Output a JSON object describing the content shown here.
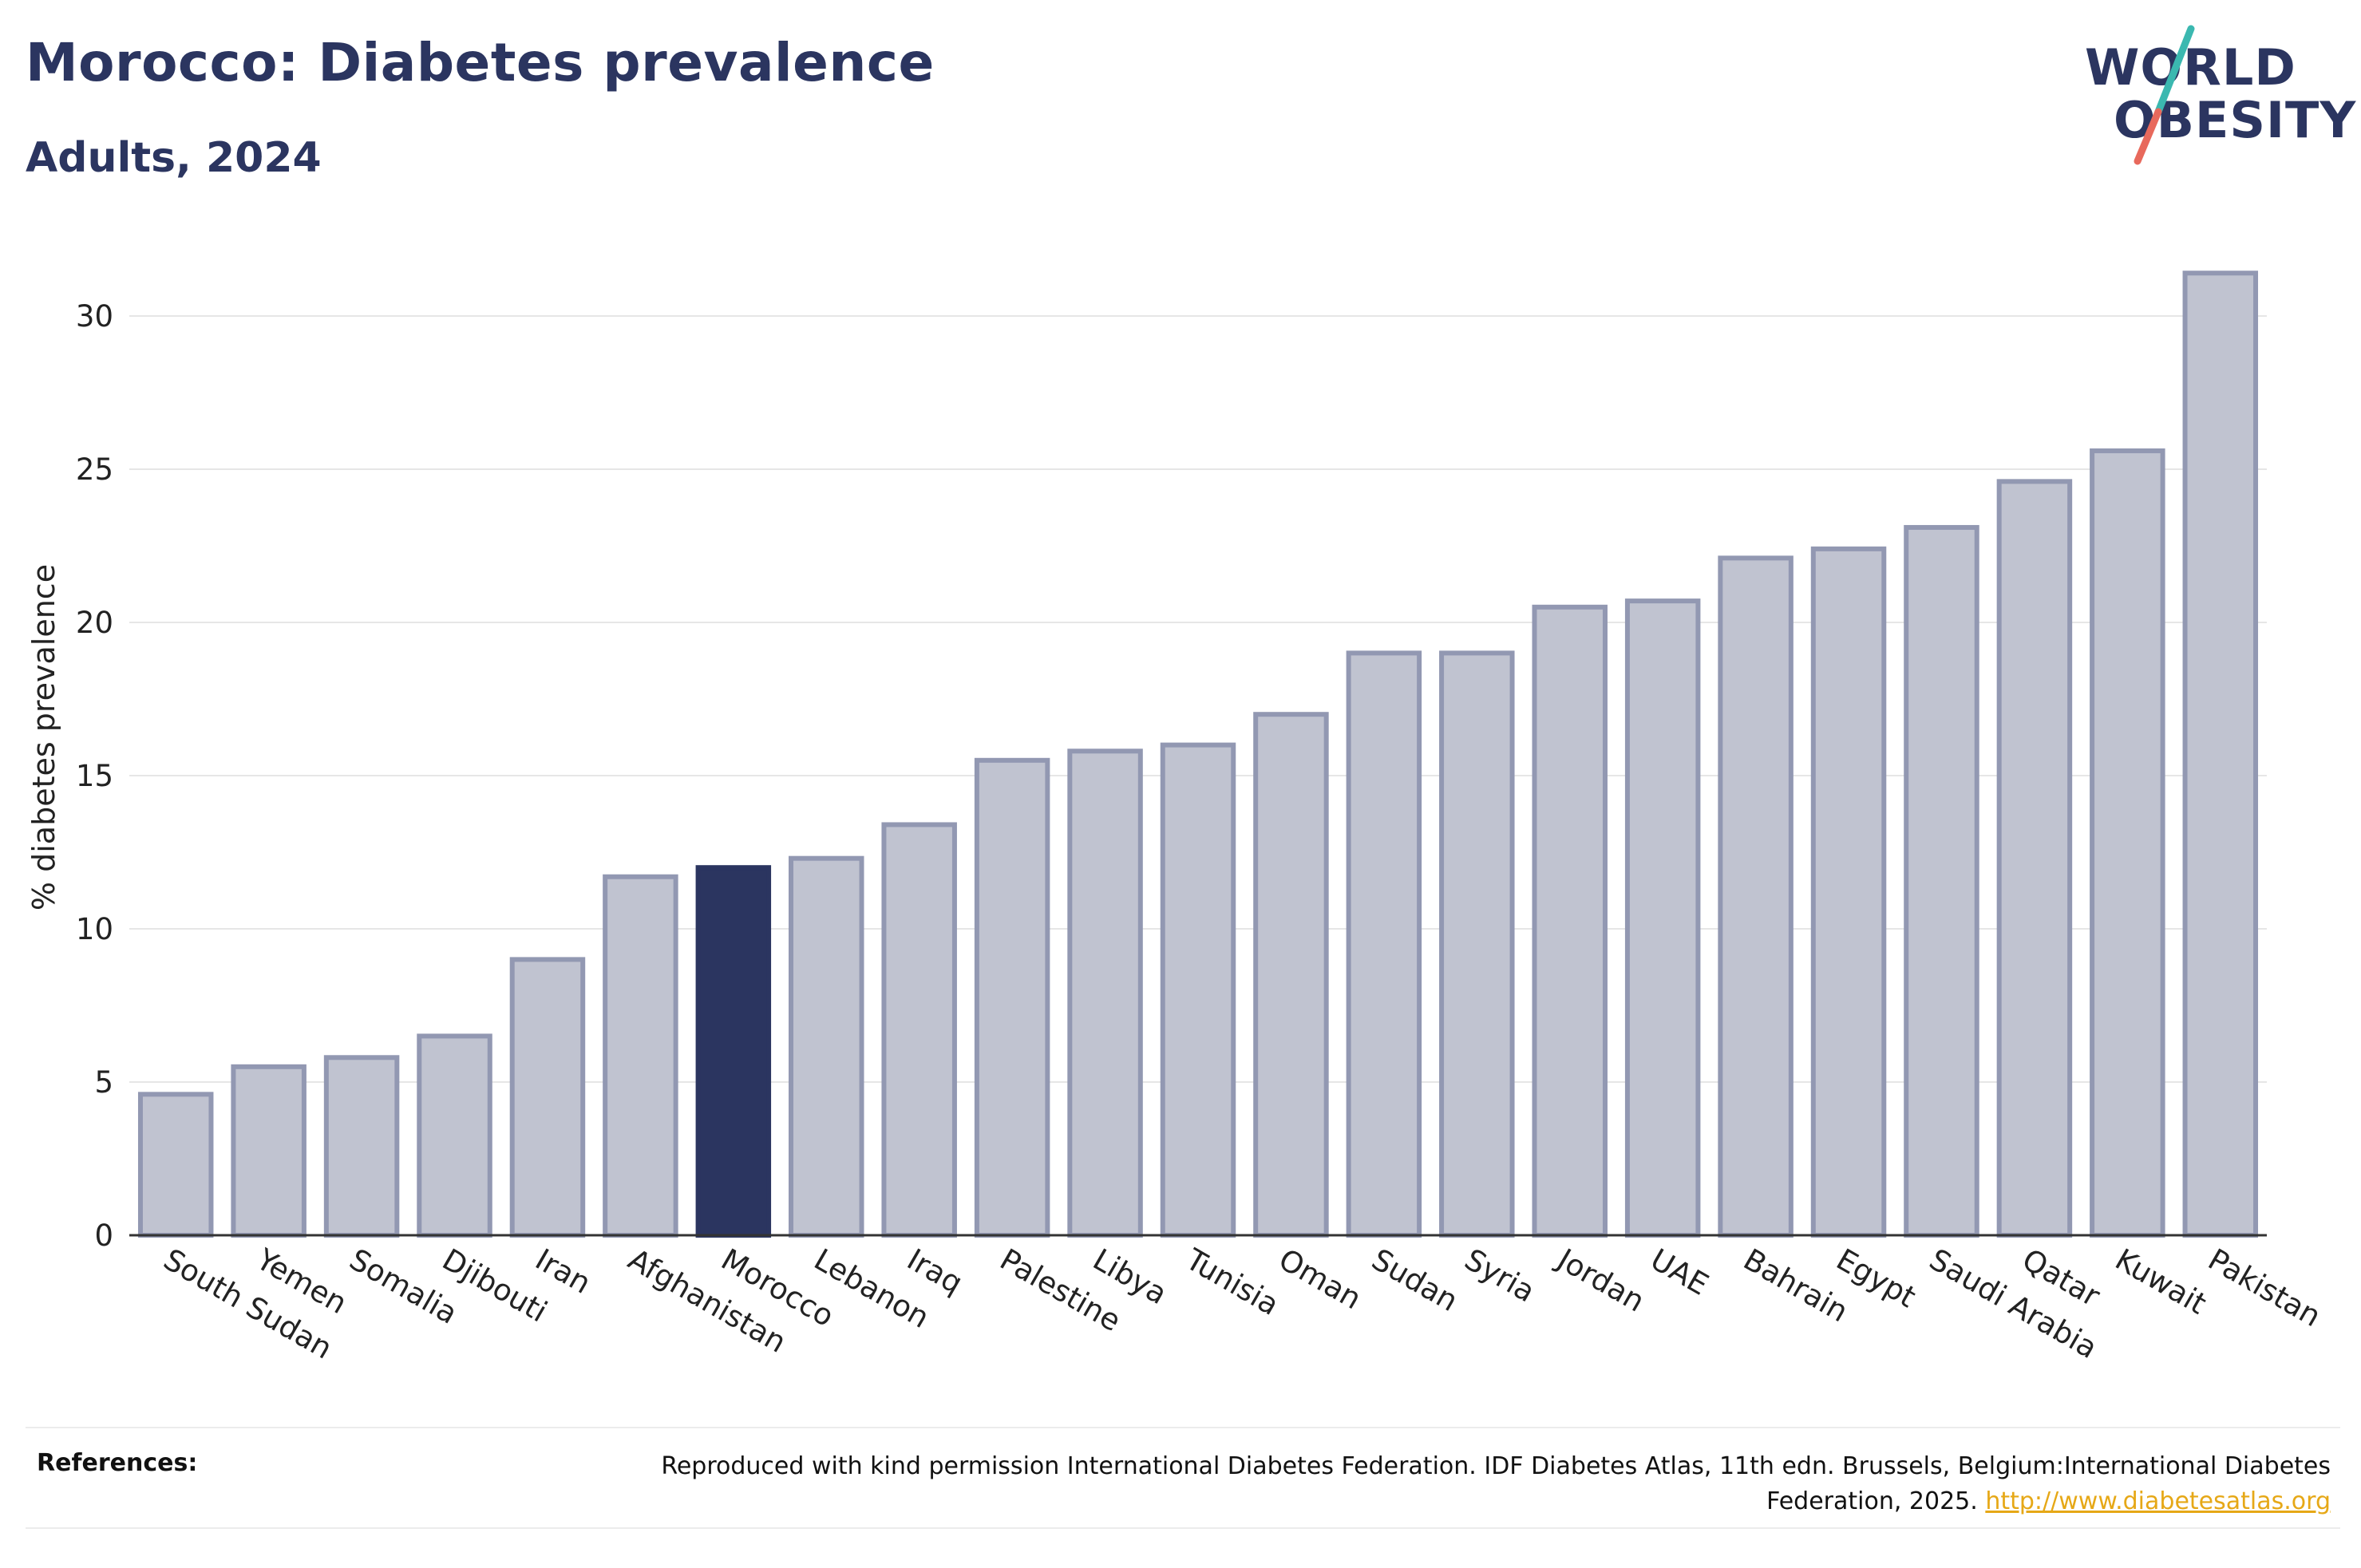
{
  "header": {
    "title": "Morocco: Diabetes prevalence",
    "subtitle": "Adults, 2024"
  },
  "logo": {
    "line1": "WORLD",
    "line2": "OBESITY",
    "slash_colors": [
      "#3bb8b0",
      "#e8695c"
    ]
  },
  "chart_data": {
    "type": "bar",
    "ylabel": "% diabetes prevalence",
    "xlabel": "",
    "ylim": [
      0,
      32.5
    ],
    "yticks": [
      0,
      5,
      10,
      15,
      20,
      25,
      30
    ],
    "grid": true,
    "highlight": "Morocco",
    "colors": {
      "bar": "#c0c3d0",
      "bar_edge": "#9298b2",
      "highlight": "#2b3560",
      "grid": "#e6e6e6",
      "axis": "#333333"
    },
    "categories": [
      "South Sudan",
      "Yemen",
      "Somalia",
      "Djibouti",
      "Iran",
      "Afghanistan",
      "Morocco",
      "Lebanon",
      "Iraq",
      "Palestine",
      "Libya",
      "Tunisia",
      "Oman",
      "Sudan",
      "Syria",
      "Jordan",
      "UAE",
      "Bahrain",
      "Egypt",
      "Saudi Arabia",
      "Qatar",
      "Kuwait",
      "Pakistan"
    ],
    "values": [
      4.6,
      5.5,
      5.8,
      6.5,
      9.0,
      11.7,
      12.0,
      12.3,
      13.4,
      15.5,
      15.8,
      16.0,
      17.0,
      19.0,
      19.0,
      20.5,
      20.7,
      22.1,
      22.4,
      23.1,
      24.6,
      25.6,
      31.4
    ]
  },
  "footer": {
    "references_label": "References:",
    "reference_text": "Reproduced with kind permission International Diabetes Federation. IDF Diabetes Atlas, 11th edn. Brussels, Belgium:International Diabetes Federation, 2025.",
    "reference_link": "http://www.diabetesatlas.org"
  }
}
